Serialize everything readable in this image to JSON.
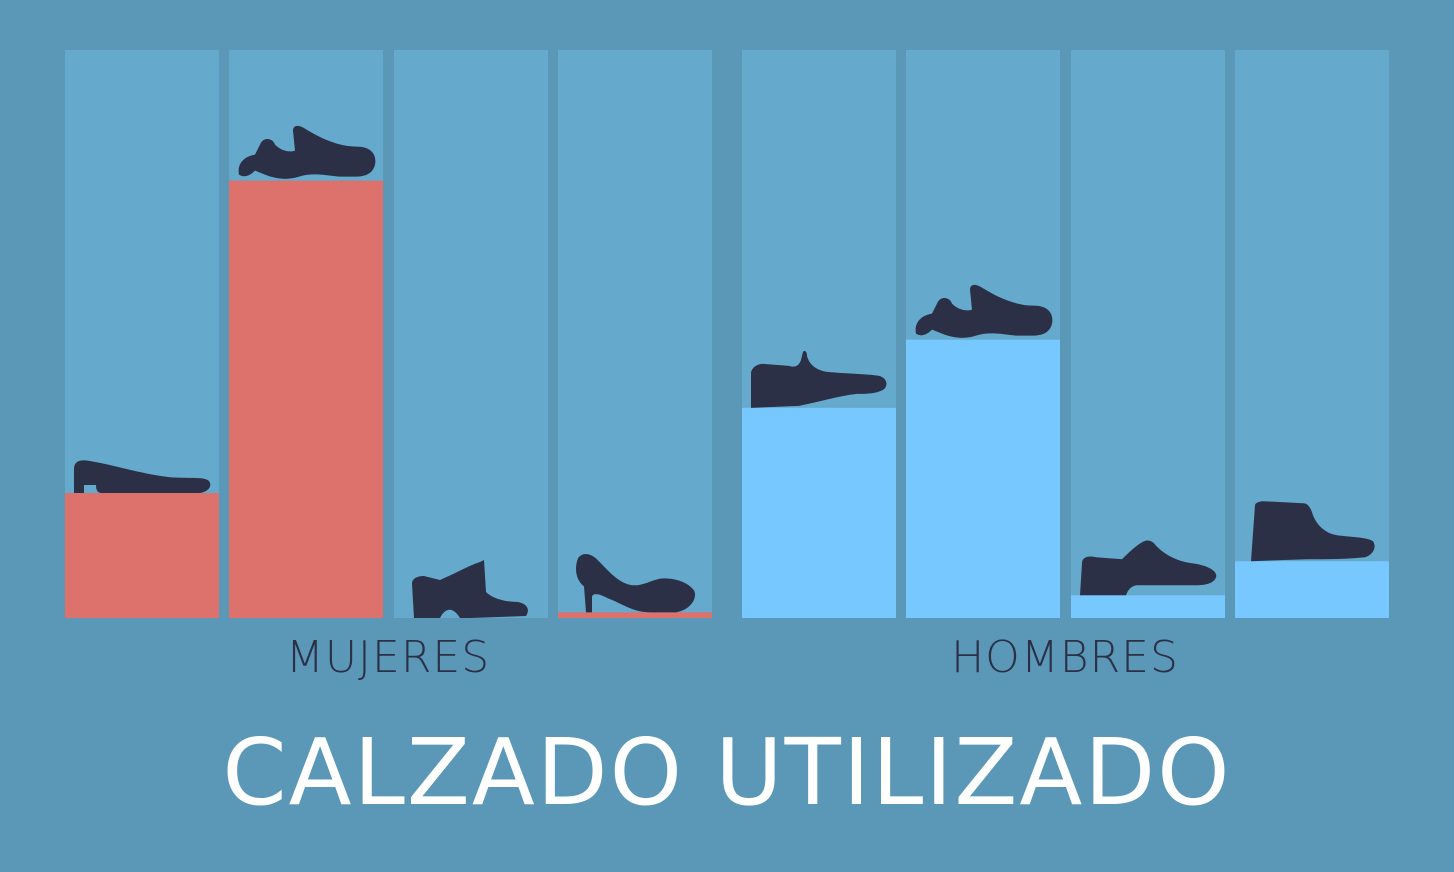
{
  "colors": {
    "background": "#5b98b8",
    "column": "#65a9cd",
    "mujeres_bar": "#dd716c",
    "hombres_bar": "#76c8fe",
    "shoe": "#2b3047",
    "title": "#ffffff"
  },
  "chart_data": {
    "type": "bar",
    "title": "CALZADO UTILIZADO",
    "ylim": [
      0,
      100
    ],
    "grid": false,
    "groups": [
      {
        "name": "MUJERES",
        "items": [
          {
            "icon": "ballet-flat-icon",
            "value": 22
          },
          {
            "icon": "sneaker-icon",
            "value": 77
          },
          {
            "icon": "ankle-boot-icon",
            "value": 0
          },
          {
            "icon": "high-heel-icon",
            "value": 1
          }
        ]
      },
      {
        "name": "HOMBRES",
        "items": [
          {
            "icon": "loafer-icon",
            "value": 37
          },
          {
            "icon": "sneaker-icon",
            "value": 49
          },
          {
            "icon": "oxford-shoe-icon",
            "value": 4
          },
          {
            "icon": "chukka-boot-icon",
            "value": 10
          }
        ]
      }
    ]
  }
}
